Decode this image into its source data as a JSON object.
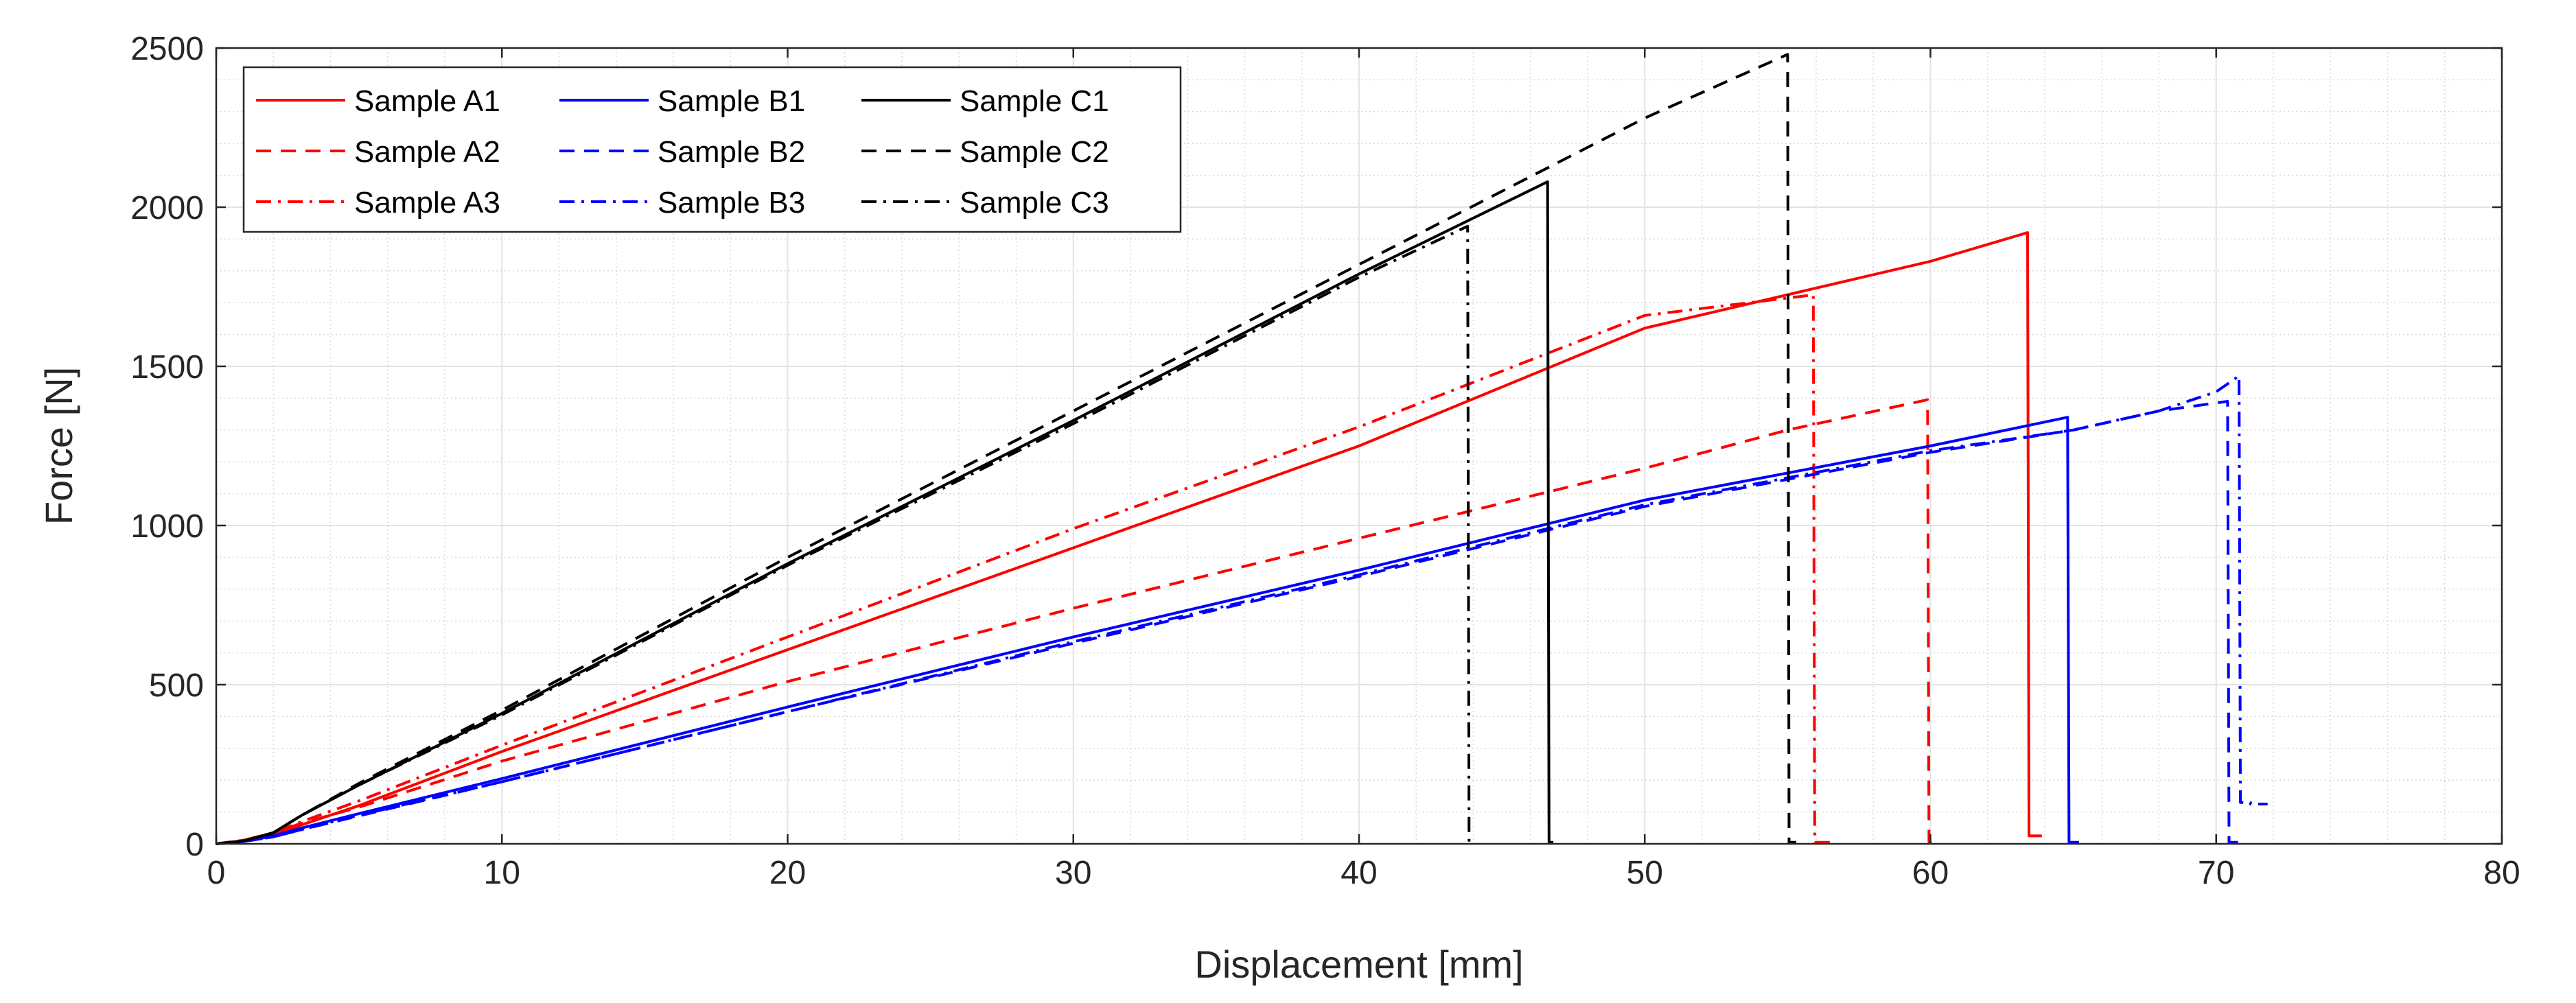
{
  "chart_data": {
    "type": "line",
    "title": "",
    "xlabel": "Displacement [mm]",
    "ylabel": "Force [N]",
    "xlim": [
      0,
      80
    ],
    "ylim": [
      0,
      2500
    ],
    "xticks": [
      0,
      10,
      20,
      30,
      40,
      50,
      60,
      70,
      80
    ],
    "yticks": [
      0,
      500,
      1000,
      1500,
      2000,
      2500
    ],
    "grid": true,
    "minor_grid": true,
    "legend_position": "top-left",
    "series": [
      {
        "name": "Sample A1",
        "color": "#ff0000",
        "style": "solid",
        "x": [
          0,
          1,
          2,
          3,
          5,
          10,
          20,
          30,
          40,
          50,
          60,
          63.4,
          63.45,
          63.9
        ],
        "y": [
          0,
          10,
          30,
          60,
          120,
          290,
          610,
          930,
          1250,
          1620,
          1830,
          1920,
          25,
          25
        ]
      },
      {
        "name": "Sample A2",
        "color": "#ff0000",
        "style": "dashed",
        "x": [
          0,
          1,
          2,
          3,
          5,
          10,
          20,
          30,
          40,
          50,
          55,
          59.9,
          59.95,
          60.3
        ],
        "y": [
          0,
          12,
          35,
          65,
          115,
          260,
          510,
          740,
          960,
          1180,
          1300,
          1395,
          5,
          5
        ]
      },
      {
        "name": "Sample A3",
        "color": "#ff0000",
        "style": "dashdot",
        "x": [
          0,
          1,
          2,
          3,
          5,
          10,
          20,
          30,
          40,
          50,
          55.5,
          55.9,
          55.95,
          56.5
        ],
        "y": [
          0,
          12,
          35,
          70,
          135,
          310,
          650,
          990,
          1310,
          1660,
          1720,
          1725,
          5,
          5
        ]
      },
      {
        "name": "Sample B1",
        "color": "#0000ff",
        "style": "solid",
        "x": [
          0,
          1,
          2,
          3,
          5,
          10,
          20,
          30,
          40,
          50,
          60,
          64.8,
          64.85,
          65.2
        ],
        "y": [
          0,
          8,
          25,
          50,
          95,
          205,
          430,
          650,
          860,
          1080,
          1250,
          1340,
          5,
          5
        ]
      },
      {
        "name": "Sample B2",
        "color": "#0000ff",
        "style": "dashed",
        "x": [
          0,
          1,
          2,
          3,
          5,
          10,
          20,
          30,
          40,
          50,
          60,
          65,
          68,
          70.4,
          70.45,
          71
        ],
        "y": [
          0,
          8,
          22,
          45,
          88,
          195,
          415,
          630,
          840,
          1060,
          1230,
          1300,
          1360,
          1390,
          5,
          5
        ]
      },
      {
        "name": "Sample B3",
        "color": "#0000ff",
        "style": "dashdot",
        "x": [
          0,
          1,
          2,
          3,
          5,
          10,
          20,
          30,
          40,
          50,
          60,
          65,
          68,
          70,
          70.8,
          70.85,
          71.2,
          71.2,
          71.8
        ],
        "y": [
          0,
          8,
          22,
          45,
          90,
          195,
          415,
          635,
          845,
          1065,
          1235,
          1300,
          1360,
          1420,
          1470,
          130,
          130,
          125,
          125
        ]
      },
      {
        "name": "Sample C1",
        "color": "#000000",
        "style": "solid",
        "x": [
          0,
          1,
          2,
          3,
          5,
          10,
          20,
          30,
          40,
          46.6,
          46.65,
          46.8
        ],
        "y": [
          0,
          10,
          35,
          90,
          185,
          410,
          880,
          1330,
          1790,
          2080,
          5,
          5
        ]
      },
      {
        "name": "Sample C2",
        "color": "#000000",
        "style": "dashed",
        "x": [
          0,
          1,
          2,
          3,
          5,
          10,
          20,
          30,
          40,
          50,
          55,
          55.05,
          55.3
        ],
        "y": [
          0,
          10,
          35,
          90,
          190,
          420,
          900,
          1360,
          1820,
          2280,
          2480,
          5,
          5
        ]
      },
      {
        "name": "Sample C3",
        "color": "#000000",
        "style": "dashdot",
        "x": [
          0,
          1,
          2,
          3,
          5,
          10,
          20,
          30,
          40,
          43.8,
          43.85,
          44
        ],
        "y": [
          0,
          10,
          35,
          90,
          185,
          405,
          875,
          1320,
          1780,
          1940,
          5,
          5
        ]
      }
    ]
  }
}
